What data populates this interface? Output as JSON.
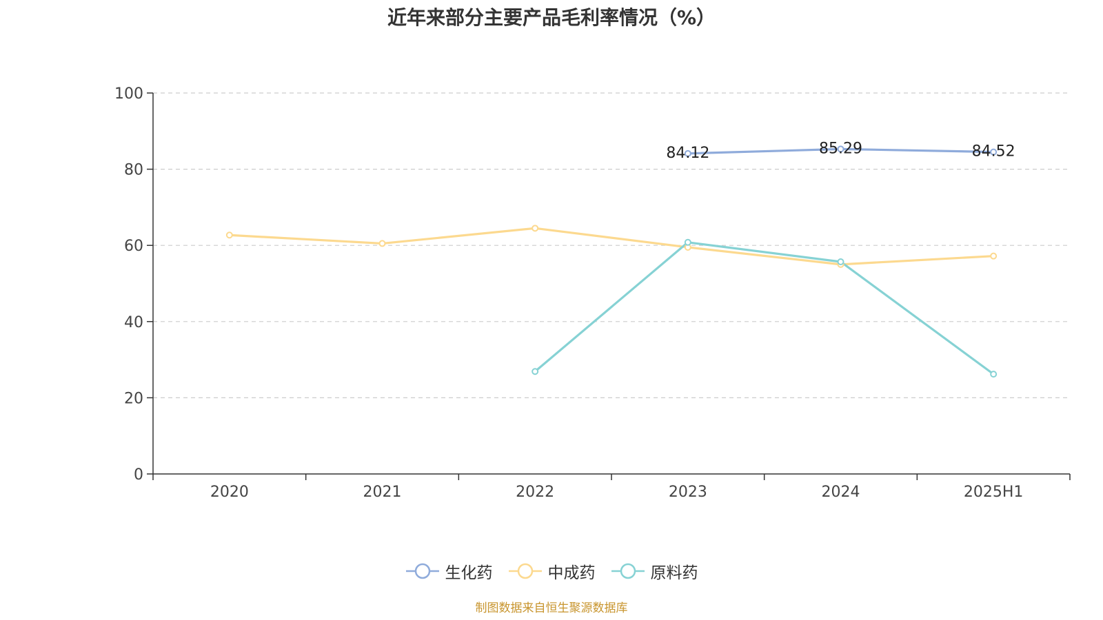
{
  "chart_data": {
    "type": "line",
    "title": "近年来部分主要产品毛利率情况（%）",
    "categories": [
      "2020",
      "2021",
      "2022",
      "2023",
      "2024",
      "2025H1"
    ],
    "ylim": [
      0,
      100
    ],
    "yticks": [
      0,
      20,
      40,
      60,
      80,
      100
    ],
    "grid": true,
    "legend_position": "bottom",
    "series": [
      {
        "name": "生化药",
        "color": "#8fabdb",
        "values": [
          null,
          null,
          null,
          84.12,
          85.29,
          84.52
        ],
        "labels": [
          "",
          "",
          "",
          "84.12",
          "85.29",
          "84.52"
        ]
      },
      {
        "name": "中成药",
        "color": "#fcd98f",
        "values": [
          62.7,
          60.5,
          64.5,
          59.5,
          55.0,
          57.2
        ]
      },
      {
        "name": "原料药",
        "color": "#86d2d4",
        "values": [
          null,
          null,
          26.9,
          60.8,
          55.7,
          26.2
        ]
      }
    ]
  },
  "source_note": "制图数据来自恒生聚源数据库"
}
